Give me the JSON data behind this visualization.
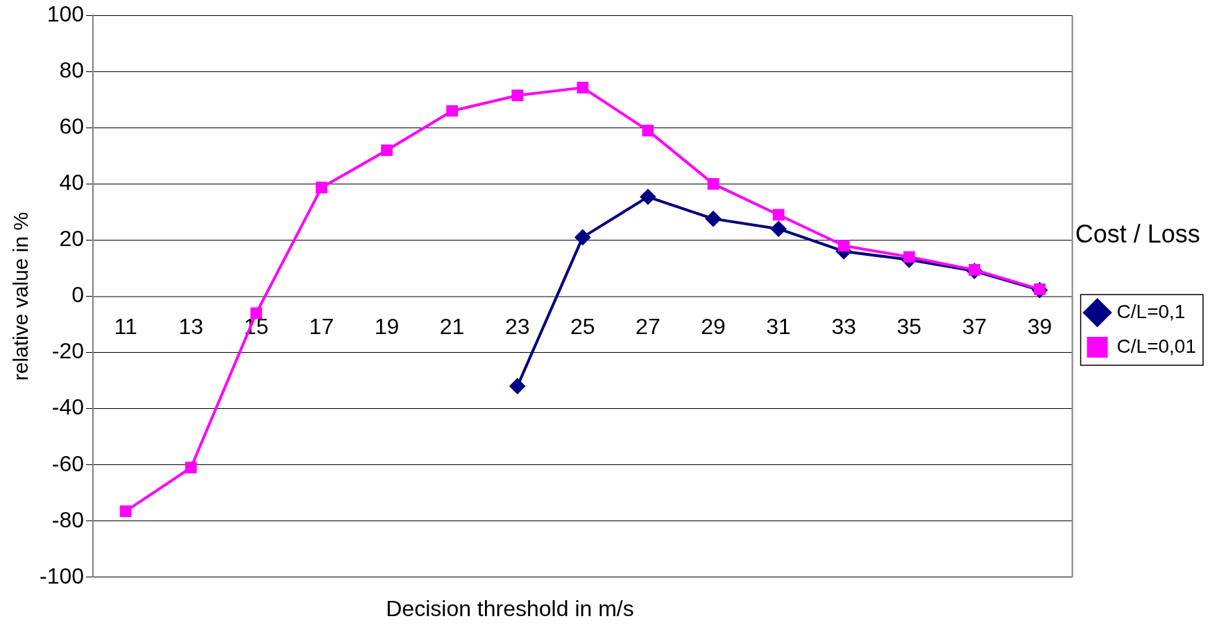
{
  "chart_data": {
    "type": "line",
    "xlabel": "Decision threshold in m/s",
    "ylabel": "relative value in %",
    "legend_title": "Cost / Loss",
    "categories": [
      "11",
      "13",
      "15",
      "17",
      "19",
      "21",
      "23",
      "25",
      "27",
      "29",
      "31",
      "33",
      "35",
      "37",
      "39"
    ],
    "series": [
      {
        "name": "C/L=0,1",
        "color": "#000080",
        "marker": "diamond",
        "values": [
          null,
          null,
          null,
          null,
          null,
          null,
          -32,
          21,
          35.4,
          27.6,
          24,
          16,
          13,
          9,
          2.2
        ]
      },
      {
        "name": "C/L=0,01",
        "color": "#ff00ff",
        "marker": "square",
        "values": [
          -76.5,
          -61,
          -6,
          38.7,
          52,
          66,
          71.5,
          74.3,
          59,
          40,
          29,
          18,
          14,
          9.4,
          2.5
        ]
      }
    ],
    "ylim": [
      -100,
      100
    ],
    "yticks": [
      -100,
      -80,
      -60,
      -40,
      -20,
      0,
      20,
      40,
      60,
      80,
      100
    ],
    "grid": "y",
    "legend": "right"
  }
}
